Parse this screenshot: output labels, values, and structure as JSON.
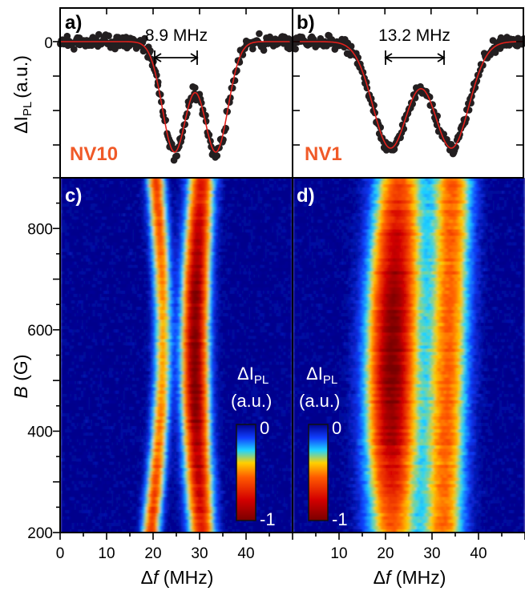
{
  "chart_data": [
    {
      "panel": "a)",
      "type": "scatter",
      "label": "NV10",
      "split_label": "8.9 MHz",
      "ylabel": "ΔI_PL (a.u.)",
      "y_ticks": [
        "0"
      ],
      "xlim": [
        0,
        50
      ],
      "dips": [
        {
          "center": 24.6,
          "width": 2.6,
          "depth": 1.0
        },
        {
          "center": 33.5,
          "width": 2.6,
          "depth": 1.0
        }
      ],
      "fit_color": "#e2201c"
    },
    {
      "panel": "b)",
      "type": "scatter",
      "label": "NV1",
      "split_label": "13.2 MHz",
      "xlim": [
        0,
        50
      ],
      "dips": [
        {
          "center": 21.2,
          "width": 3.8,
          "depth": 1.0
        },
        {
          "center": 34.4,
          "width": 3.8,
          "depth": 1.0
        }
      ],
      "fit_color": "#e2201c"
    },
    {
      "panel": "c)",
      "type": "heatmap",
      "xlabel": "Δf (MHz)",
      "ylabel": "B (G)",
      "x_ticks": [
        "0",
        "10",
        "20",
        "30",
        "40"
      ],
      "y_ticks": [
        "200",
        "400",
        "600",
        "800"
      ],
      "xlim": [
        0,
        50
      ],
      "ylim": [
        200,
        900
      ]
    },
    {
      "panel": "d)",
      "type": "heatmap",
      "xlabel": "Δf (MHz)",
      "x_ticks": [
        "10",
        "20",
        "30",
        "40"
      ],
      "xlim": [
        0,
        50
      ],
      "ylim": [
        200,
        900
      ]
    }
  ],
  "colorbar": {
    "title_symbol": "ΔI",
    "title_subscript": "PL",
    "unit": "(a.u.)",
    "max_label": "0",
    "min_label": "-1",
    "colors": [
      "#7a0000",
      "#d40000",
      "#ff5a00",
      "#ffd000",
      "#1fd5ff",
      "#1040ff",
      "#00008c"
    ]
  }
}
